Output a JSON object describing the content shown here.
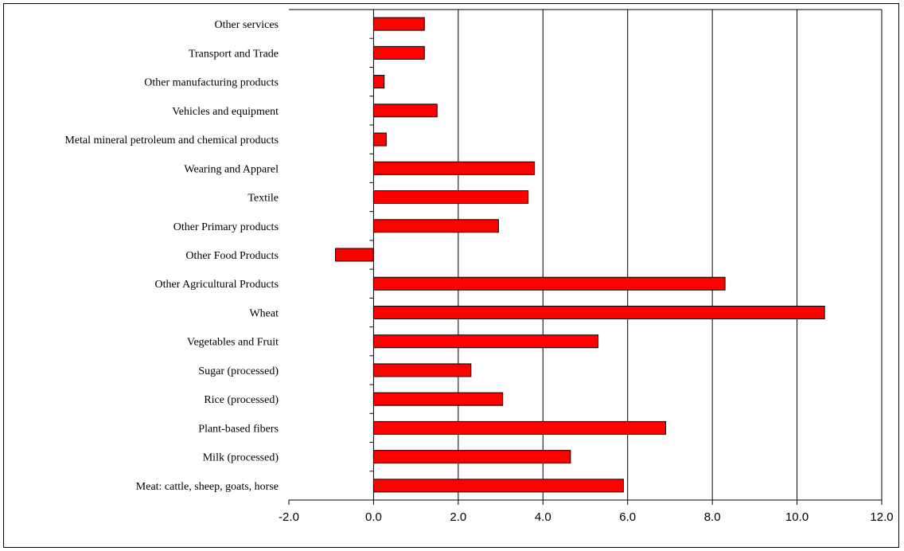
{
  "chart_data": {
    "type": "bar",
    "orientation": "horizontal",
    "categories": [
      "Other services",
      "Transport and Trade",
      "Other manufacturing products",
      "Vehicles and equipment",
      "Metal mineral petroleum and chemical products",
      "Wearing and Apparel",
      "Textile",
      "Other Primary products",
      "Other Food Products",
      "Other Agricultural Products",
      "Wheat",
      "Vegetables and Fruit",
      "Sugar (processed)",
      "Rice (processed)",
      "Plant-based fibers",
      "Milk (processed)",
      "Meat: cattle, sheep, goats, horse"
    ],
    "values": [
      1.2,
      1.2,
      0.25,
      1.5,
      0.3,
      3.8,
      3.65,
      2.95,
      -0.9,
      8.3,
      10.65,
      5.3,
      2.3,
      3.05,
      6.9,
      4.65,
      5.9
    ],
    "xlim": [
      -2.0,
      12.0
    ],
    "xticks": [
      "-2.0",
      "0.0",
      "2.0",
      "4.0",
      "6.0",
      "8.0",
      "10.0",
      "12.0"
    ],
    "grid": true,
    "bar_color": "#ff0000",
    "title": "",
    "xlabel": "",
    "ylabel": ""
  }
}
